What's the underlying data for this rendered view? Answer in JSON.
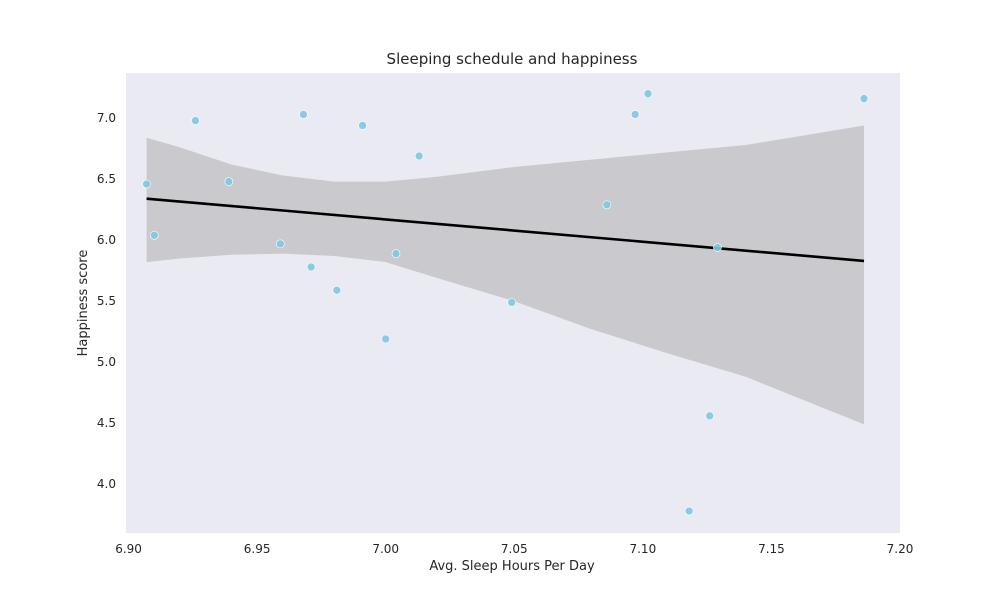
{
  "chart_data": {
    "type": "scatter",
    "title": "Sleeping schedule and happiness",
    "xlabel": "Avg. Sleep Hours Per Day",
    "ylabel": "Happiness score",
    "xlim": [
      6.899,
      7.2
    ],
    "ylim": [
      3.6,
      7.37
    ],
    "xticks": [
      6.9,
      6.95,
      7.0,
      7.05,
      7.1,
      7.15,
      7.2
    ],
    "xtick_labels": [
      "6.90",
      "6.95",
      "7.00",
      "7.05",
      "7.10",
      "7.15",
      "7.20"
    ],
    "yticks": [
      4.0,
      4.5,
      5.0,
      5.5,
      6.0,
      6.5,
      7.0
    ],
    "ytick_labels": [
      "4.0",
      "4.5",
      "5.0",
      "5.5",
      "6.0",
      "6.5",
      "7.0"
    ],
    "grid": false,
    "background": "#eaeaf2",
    "point_color": "#7ec8e3",
    "line_color": "#000000",
    "band_color": "#c9c9ce",
    "points": [
      {
        "x": 6.907,
        "y": 6.46
      },
      {
        "x": 6.91,
        "y": 6.04
      },
      {
        "x": 6.926,
        "y": 6.98
      },
      {
        "x": 6.939,
        "y": 6.48
      },
      {
        "x": 6.959,
        "y": 5.97
      },
      {
        "x": 6.968,
        "y": 7.03
      },
      {
        "x": 6.971,
        "y": 5.78
      },
      {
        "x": 6.981,
        "y": 5.59
      },
      {
        "x": 6.991,
        "y": 6.94
      },
      {
        "x": 7.0,
        "y": 5.19
      },
      {
        "x": 7.004,
        "y": 5.89
      },
      {
        "x": 7.013,
        "y": 6.69
      },
      {
        "x": 7.049,
        "y": 5.49
      },
      {
        "x": 7.086,
        "y": 6.29
      },
      {
        "x": 7.097,
        "y": 7.03
      },
      {
        "x": 7.102,
        "y": 7.2
      },
      {
        "x": 7.118,
        "y": 3.78
      },
      {
        "x": 7.126,
        "y": 4.56
      },
      {
        "x": 7.129,
        "y": 5.94
      },
      {
        "x": 7.186,
        "y": 7.16
      }
    ],
    "regression": {
      "x": [
        6.907,
        7.186
      ],
      "y": [
        6.34,
        5.83
      ]
    },
    "confidence_band": {
      "x": [
        6.907,
        6.92,
        6.94,
        6.96,
        6.98,
        7.0,
        7.02,
        7.05,
        7.08,
        7.11,
        7.14,
        7.186
      ],
      "upper": [
        6.84,
        6.76,
        6.62,
        6.53,
        6.48,
        6.48,
        6.52,
        6.6,
        6.66,
        6.72,
        6.78,
        6.94
      ],
      "lower": [
        5.82,
        5.85,
        5.88,
        5.89,
        5.87,
        5.82,
        5.69,
        5.5,
        5.27,
        5.07,
        4.88,
        4.49
      ]
    }
  }
}
